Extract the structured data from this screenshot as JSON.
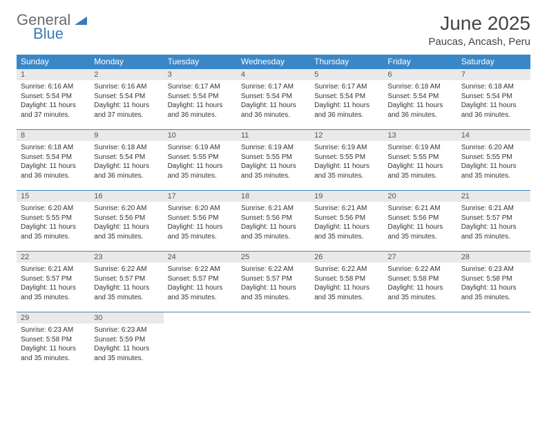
{
  "logo": {
    "line1": "General",
    "line2": "Blue"
  },
  "header": {
    "month_title": "June 2025",
    "location": "Paucas, Ancash, Peru"
  },
  "colors": {
    "header_bg": "#3a87c8",
    "header_text": "#ffffff",
    "daynum_bg": "#e9e9e9",
    "row_border": "#3a87c8",
    "logo_gray": "#6b6b6b",
    "logo_blue": "#3a7ab8"
  },
  "weekdays": [
    "Sunday",
    "Monday",
    "Tuesday",
    "Wednesday",
    "Thursday",
    "Friday",
    "Saturday"
  ],
  "labels": {
    "sunrise": "Sunrise: ",
    "sunset": "Sunset: ",
    "daylight": "Daylight: "
  },
  "days": [
    {
      "n": 1,
      "sunrise": "6:16 AM",
      "sunset": "5:54 PM",
      "daylight": "11 hours and 37 minutes."
    },
    {
      "n": 2,
      "sunrise": "6:16 AM",
      "sunset": "5:54 PM",
      "daylight": "11 hours and 37 minutes."
    },
    {
      "n": 3,
      "sunrise": "6:17 AM",
      "sunset": "5:54 PM",
      "daylight": "11 hours and 36 minutes."
    },
    {
      "n": 4,
      "sunrise": "6:17 AM",
      "sunset": "5:54 PM",
      "daylight": "11 hours and 36 minutes."
    },
    {
      "n": 5,
      "sunrise": "6:17 AM",
      "sunset": "5:54 PM",
      "daylight": "11 hours and 36 minutes."
    },
    {
      "n": 6,
      "sunrise": "6:18 AM",
      "sunset": "5:54 PM",
      "daylight": "11 hours and 36 minutes."
    },
    {
      "n": 7,
      "sunrise": "6:18 AM",
      "sunset": "5:54 PM",
      "daylight": "11 hours and 36 minutes."
    },
    {
      "n": 8,
      "sunrise": "6:18 AM",
      "sunset": "5:54 PM",
      "daylight": "11 hours and 36 minutes."
    },
    {
      "n": 9,
      "sunrise": "6:18 AM",
      "sunset": "5:54 PM",
      "daylight": "11 hours and 36 minutes."
    },
    {
      "n": 10,
      "sunrise": "6:19 AM",
      "sunset": "5:55 PM",
      "daylight": "11 hours and 35 minutes."
    },
    {
      "n": 11,
      "sunrise": "6:19 AM",
      "sunset": "5:55 PM",
      "daylight": "11 hours and 35 minutes."
    },
    {
      "n": 12,
      "sunrise": "6:19 AM",
      "sunset": "5:55 PM",
      "daylight": "11 hours and 35 minutes."
    },
    {
      "n": 13,
      "sunrise": "6:19 AM",
      "sunset": "5:55 PM",
      "daylight": "11 hours and 35 minutes."
    },
    {
      "n": 14,
      "sunrise": "6:20 AM",
      "sunset": "5:55 PM",
      "daylight": "11 hours and 35 minutes."
    },
    {
      "n": 15,
      "sunrise": "6:20 AM",
      "sunset": "5:55 PM",
      "daylight": "11 hours and 35 minutes."
    },
    {
      "n": 16,
      "sunrise": "6:20 AM",
      "sunset": "5:56 PM",
      "daylight": "11 hours and 35 minutes."
    },
    {
      "n": 17,
      "sunrise": "6:20 AM",
      "sunset": "5:56 PM",
      "daylight": "11 hours and 35 minutes."
    },
    {
      "n": 18,
      "sunrise": "6:21 AM",
      "sunset": "5:56 PM",
      "daylight": "11 hours and 35 minutes."
    },
    {
      "n": 19,
      "sunrise": "6:21 AM",
      "sunset": "5:56 PM",
      "daylight": "11 hours and 35 minutes."
    },
    {
      "n": 20,
      "sunrise": "6:21 AM",
      "sunset": "5:56 PM",
      "daylight": "11 hours and 35 minutes."
    },
    {
      "n": 21,
      "sunrise": "6:21 AM",
      "sunset": "5:57 PM",
      "daylight": "11 hours and 35 minutes."
    },
    {
      "n": 22,
      "sunrise": "6:21 AM",
      "sunset": "5:57 PM",
      "daylight": "11 hours and 35 minutes."
    },
    {
      "n": 23,
      "sunrise": "6:22 AM",
      "sunset": "5:57 PM",
      "daylight": "11 hours and 35 minutes."
    },
    {
      "n": 24,
      "sunrise": "6:22 AM",
      "sunset": "5:57 PM",
      "daylight": "11 hours and 35 minutes."
    },
    {
      "n": 25,
      "sunrise": "6:22 AM",
      "sunset": "5:57 PM",
      "daylight": "11 hours and 35 minutes."
    },
    {
      "n": 26,
      "sunrise": "6:22 AM",
      "sunset": "5:58 PM",
      "daylight": "11 hours and 35 minutes."
    },
    {
      "n": 27,
      "sunrise": "6:22 AM",
      "sunset": "5:58 PM",
      "daylight": "11 hours and 35 minutes."
    },
    {
      "n": 28,
      "sunrise": "6:23 AM",
      "sunset": "5:58 PM",
      "daylight": "11 hours and 35 minutes."
    },
    {
      "n": 29,
      "sunrise": "6:23 AM",
      "sunset": "5:58 PM",
      "daylight": "11 hours and 35 minutes."
    },
    {
      "n": 30,
      "sunrise": "6:23 AM",
      "sunset": "5:59 PM",
      "daylight": "11 hours and 35 minutes."
    }
  ],
  "grid": {
    "start_weekday": 0,
    "rows": 5,
    "cols": 7
  }
}
